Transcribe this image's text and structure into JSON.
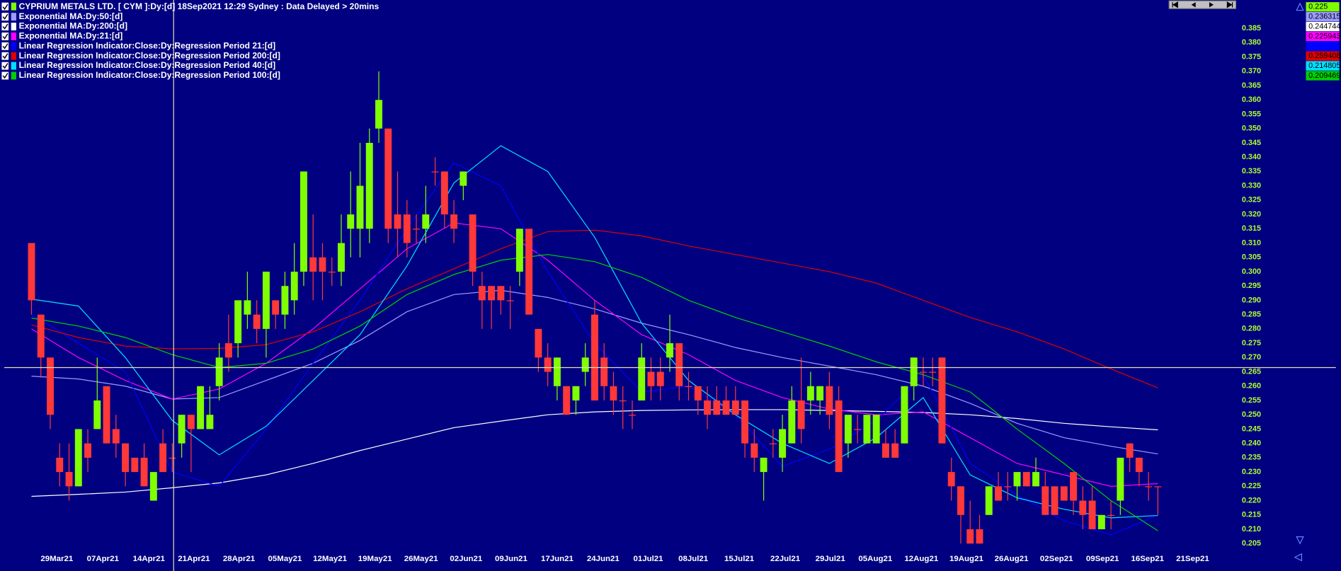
{
  "chart_data": {
    "type": "candlestick",
    "title": "CYPRIUM METALS LTD. [ CYM ]:Dy:[d]  18Sep2021 12:29 Sydney : Data Delayed > 20mins",
    "up_color": "#80ff00",
    "down_color": "#ff3838",
    "candles": [
      [
        0.31,
        0.31,
        0.285,
        0.29
      ],
      [
        0.285,
        0.285,
        0.263,
        0.27
      ],
      [
        0.27,
        0.27,
        0.245,
        0.25
      ],
      [
        0.235,
        0.24,
        0.225,
        0.23
      ],
      [
        0.23,
        0.24,
        0.22,
        0.225
      ],
      [
        0.225,
        0.245,
        0.225,
        0.245
      ],
      [
        0.24,
        0.245,
        0.23,
        0.235
      ],
      [
        0.245,
        0.27,
        0.245,
        0.255
      ],
      [
        0.26,
        0.26,
        0.24,
        0.24
      ],
      [
        0.245,
        0.25,
        0.235,
        0.24
      ],
      [
        0.24,
        0.24,
        0.225,
        0.23
      ],
      [
        0.235,
        0.235,
        0.23,
        0.23
      ],
      [
        0.235,
        0.24,
        0.225,
        0.225
      ],
      [
        0.22,
        0.23,
        0.22,
        0.23
      ],
      [
        0.24,
        0.245,
        0.23,
        0.23
      ],
      [
        0.235,
        0.24,
        0.23,
        0.235
      ],
      [
        0.24,
        0.25,
        0.235,
        0.25
      ],
      [
        0.25,
        0.25,
        0.23,
        0.245
      ],
      [
        0.245,
        0.26,
        0.245,
        0.26
      ],
      [
        0.245,
        0.26,
        0.245,
        0.25
      ],
      [
        0.26,
        0.275,
        0.255,
        0.27
      ],
      [
        0.275,
        0.285,
        0.265,
        0.27
      ],
      [
        0.275,
        0.29,
        0.27,
        0.29
      ],
      [
        0.285,
        0.3,
        0.28,
        0.29
      ],
      [
        0.285,
        0.29,
        0.275,
        0.28
      ],
      [
        0.28,
        0.3,
        0.27,
        0.3
      ],
      [
        0.29,
        0.29,
        0.28,
        0.285
      ],
      [
        0.285,
        0.3,
        0.28,
        0.295
      ],
      [
        0.29,
        0.31,
        0.285,
        0.3
      ],
      [
        0.3,
        0.335,
        0.295,
        0.335
      ],
      [
        0.305,
        0.32,
        0.29,
        0.3
      ],
      [
        0.305,
        0.31,
        0.29,
        0.3
      ],
      [
        0.3,
        0.305,
        0.295,
        0.3
      ],
      [
        0.3,
        0.32,
        0.295,
        0.31
      ],
      [
        0.315,
        0.335,
        0.305,
        0.32
      ],
      [
        0.315,
        0.345,
        0.305,
        0.33
      ],
      [
        0.315,
        0.35,
        0.31,
        0.345
      ],
      [
        0.35,
        0.37,
        0.345,
        0.36
      ],
      [
        0.35,
        0.35,
        0.31,
        0.315
      ],
      [
        0.32,
        0.335,
        0.305,
        0.315
      ],
      [
        0.32,
        0.325,
        0.305,
        0.31
      ],
      [
        0.315,
        0.32,
        0.31,
        0.315
      ],
      [
        0.315,
        0.33,
        0.31,
        0.32
      ],
      [
        0.335,
        0.34,
        0.33,
        0.335
      ],
      [
        0.335,
        0.335,
        0.315,
        0.32
      ],
      [
        0.32,
        0.325,
        0.31,
        0.315
      ],
      [
        0.33,
        0.335,
        0.325,
        0.335
      ],
      [
        0.32,
        0.32,
        0.295,
        0.3
      ],
      [
        0.295,
        0.3,
        0.28,
        0.29
      ],
      [
        0.295,
        0.295,
        0.28,
        0.29
      ],
      [
        0.295,
        0.295,
        0.285,
        0.29
      ],
      [
        0.29,
        0.295,
        0.28,
        0.29
      ],
      [
        0.3,
        0.315,
        0.295,
        0.315
      ],
      [
        0.315,
        0.315,
        0.285,
        0.285
      ],
      [
        0.28,
        0.28,
        0.265,
        0.27
      ],
      [
        0.27,
        0.275,
        0.26,
        0.265
      ],
      [
        0.26,
        0.27,
        0.255,
        0.27
      ],
      [
        0.26,
        0.26,
        0.25,
        0.25
      ],
      [
        0.255,
        0.26,
        0.25,
        0.26
      ],
      [
        0.265,
        0.275,
        0.26,
        0.27
      ],
      [
        0.285,
        0.29,
        0.255,
        0.255
      ],
      [
        0.27,
        0.275,
        0.255,
        0.26
      ],
      [
        0.26,
        0.265,
        0.25,
        0.255
      ],
      [
        0.255,
        0.26,
        0.245,
        0.255
      ],
      [
        0.25,
        0.255,
        0.245,
        0.25
      ],
      [
        0.255,
        0.275,
        0.255,
        0.27
      ],
      [
        0.265,
        0.27,
        0.255,
        0.26
      ],
      [
        0.265,
        0.27,
        0.255,
        0.26
      ],
      [
        0.27,
        0.285,
        0.265,
        0.275
      ],
      [
        0.275,
        0.275,
        0.255,
        0.26
      ],
      [
        0.26,
        0.265,
        0.255,
        0.26
      ],
      [
        0.26,
        0.26,
        0.25,
        0.255
      ],
      [
        0.255,
        0.26,
        0.245,
        0.25
      ],
      [
        0.255,
        0.26,
        0.25,
        0.25
      ],
      [
        0.255,
        0.26,
        0.25,
        0.25
      ],
      [
        0.255,
        0.26,
        0.25,
        0.25
      ],
      [
        0.255,
        0.255,
        0.235,
        0.24
      ],
      [
        0.24,
        0.245,
        0.23,
        0.235
      ],
      [
        0.23,
        0.235,
        0.22,
        0.235
      ],
      [
        0.24,
        0.245,
        0.235,
        0.24
      ],
      [
        0.235,
        0.25,
        0.23,
        0.245
      ],
      [
        0.24,
        0.26,
        0.24,
        0.255
      ],
      [
        0.255,
        0.27,
        0.24,
        0.245
      ],
      [
        0.255,
        0.265,
        0.25,
        0.26
      ],
      [
        0.255,
        0.26,
        0.25,
        0.26
      ],
      [
        0.26,
        0.265,
        0.245,
        0.25
      ],
      [
        0.255,
        0.26,
        0.23,
        0.23
      ],
      [
        0.24,
        0.25,
        0.235,
        0.25
      ],
      [
        0.245,
        0.25,
        0.24,
        0.245
      ],
      [
        0.24,
        0.25,
        0.24,
        0.25
      ],
      [
        0.24,
        0.25,
        0.24,
        0.25
      ],
      [
        0.24,
        0.245,
        0.235,
        0.235
      ],
      [
        0.24,
        0.245,
        0.235,
        0.235
      ],
      [
        0.24,
        0.26,
        0.24,
        0.26
      ],
      [
        0.26,
        0.27,
        0.255,
        0.27
      ],
      [
        0.265,
        0.27,
        0.26,
        0.265
      ],
      [
        0.265,
        0.27,
        0.26,
        0.265
      ],
      [
        0.27,
        0.27,
        0.24,
        0.24
      ],
      [
        0.23,
        0.235,
        0.22,
        0.225
      ],
      [
        0.225,
        0.225,
        0.205,
        0.215
      ],
      [
        0.21,
        0.22,
        0.205,
        0.205
      ],
      [
        0.21,
        0.215,
        0.205,
        0.205
      ],
      [
        0.215,
        0.225,
        0.215,
        0.225
      ],
      [
        0.225,
        0.23,
        0.22,
        0.22
      ],
      [
        0.225,
        0.23,
        0.22,
        0.225
      ],
      [
        0.225,
        0.23,
        0.22,
        0.23
      ],
      [
        0.23,
        0.23,
        0.225,
        0.225
      ],
      [
        0.225,
        0.235,
        0.225,
        0.23
      ],
      [
        0.225,
        0.23,
        0.215,
        0.215
      ],
      [
        0.225,
        0.225,
        0.215,
        0.215
      ],
      [
        0.225,
        0.225,
        0.22,
        0.22
      ],
      [
        0.23,
        0.23,
        0.215,
        0.22
      ],
      [
        0.22,
        0.225,
        0.21,
        0.215
      ],
      [
        0.22,
        0.225,
        0.21,
        0.21
      ],
      [
        0.21,
        0.215,
        0.21,
        0.215
      ],
      [
        0.215,
        0.22,
        0.21,
        0.215
      ],
      [
        0.22,
        0.235,
        0.215,
        0.235
      ],
      [
        0.24,
        0.24,
        0.23,
        0.235
      ],
      [
        0.235,
        0.235,
        0.225,
        0.23
      ],
      [
        0.225,
        0.23,
        0.22,
        0.225
      ],
      [
        0.225,
        0.225,
        0.215,
        0.225
      ]
    ],
    "x": [
      0,
      5,
      10,
      15,
      20,
      25,
      30,
      35,
      40,
      45,
      50,
      55,
      60,
      65,
      70,
      75,
      80,
      85,
      90,
      95,
      100,
      105,
      110,
      115,
      120
    ],
    "series": [
      {
        "name": "Exponential MA:Dy:50:[d]",
        "color": "#9c9cff",
        "values": [
          0.2635,
          0.2625,
          0.26,
          0.2555,
          0.256,
          0.262,
          0.268,
          0.276,
          0.286,
          0.292,
          0.2935,
          0.291,
          0.287,
          0.282,
          0.278,
          0.2735,
          0.27,
          0.267,
          0.264,
          0.26,
          0.254,
          0.247,
          0.242,
          0.239,
          0.236315
        ]
      },
      {
        "name": "Exponential MA:Dy:200:[d]",
        "color": "#ffffff",
        "values": [
          0.2215,
          0.2222,
          0.223,
          0.2245,
          0.2262,
          0.229,
          0.233,
          0.2375,
          0.2415,
          0.2455,
          0.2478,
          0.25,
          0.251,
          0.2515,
          0.2517,
          0.2518,
          0.2518,
          0.2515,
          0.2512,
          0.2508,
          0.25,
          0.2487,
          0.247,
          0.2458,
          0.244744
        ]
      },
      {
        "name": "Exponential MA:Dy:21:[d]",
        "color": "#ff00ff",
        "values": [
          0.28,
          0.27,
          0.262,
          0.2555,
          0.259,
          0.268,
          0.28,
          0.294,
          0.308,
          0.317,
          0.315,
          0.304,
          0.29,
          0.278,
          0.271,
          0.262,
          0.256,
          0.252,
          0.25,
          0.251,
          0.242,
          0.233,
          0.229,
          0.225,
          0.225943
        ]
      },
      {
        "name": "Linear Regression Indicator:Close:Dy:Regression Period 21:[d]",
        "color": "#0000ff",
        "values": [
          0.285,
          0.275,
          0.265,
          0.23,
          0.225,
          0.245,
          0.268,
          0.29,
          0.315,
          0.338,
          0.33,
          0.3,
          0.275,
          0.258,
          0.26,
          0.25,
          0.232,
          0.238,
          0.248,
          0.264,
          0.233,
          0.222,
          0.213,
          0.208,
          0.215
        ]
      },
      {
        "name": "Linear Regression Indicator:Close:Dy:Regression Period 200:[d]",
        "color": "#e00000",
        "values": [
          0.2814,
          0.277,
          0.274,
          0.273,
          0.2732,
          0.2745,
          0.279,
          0.286,
          0.294,
          0.301,
          0.308,
          0.314,
          0.3145,
          0.3125,
          0.309,
          0.306,
          0.303,
          0.3,
          0.296,
          0.29,
          0.284,
          0.279,
          0.273,
          0.266,
          0.259408
        ]
      },
      {
        "name": "Linear Regression Indicator:Close:Dy:Regression Period 40:[d]",
        "color": "#00e0ff",
        "values": [
          0.2904,
          0.288,
          0.27,
          0.248,
          0.236,
          0.246,
          0.262,
          0.278,
          0.302,
          0.331,
          0.344,
          0.335,
          0.312,
          0.282,
          0.262,
          0.25,
          0.24,
          0.233,
          0.242,
          0.256,
          0.229,
          0.221,
          0.217,
          0.214,
          0.214805
        ]
      },
      {
        "name": "Linear Regression Indicator:Close:Dy:Regression Period 100:[d]",
        "color": "#00d000",
        "values": [
          0.2838,
          0.281,
          0.277,
          0.271,
          0.2665,
          0.268,
          0.273,
          0.281,
          0.292,
          0.299,
          0.304,
          0.306,
          0.3035,
          0.298,
          0.29,
          0.284,
          0.279,
          0.274,
          0.2685,
          0.264,
          0.258,
          0.245,
          0.233,
          0.22,
          0.209469
        ]
      }
    ],
    "xlim": [
      -2.9,
      128.3
    ],
    "xticks": [
      {
        "value": 2.7,
        "label": "29Mar21"
      },
      {
        "value": 7.6,
        "label": "07Apr21"
      },
      {
        "value": 12.5,
        "label": "14Apr21"
      },
      {
        "value": 17.3,
        "label": "21Apr21"
      },
      {
        "value": 22.1,
        "label": "28Apr21"
      },
      {
        "value": 27,
        "label": "05May21"
      },
      {
        "value": 31.8,
        "label": "12May21"
      },
      {
        "value": 36.6,
        "label": "19May21"
      },
      {
        "value": 41.5,
        "label": "26May21"
      },
      {
        "value": 46.3,
        "label": "02Jun21"
      },
      {
        "value": 51.1,
        "label": "09Jun21"
      },
      {
        "value": 56,
        "label": "17Jun21"
      },
      {
        "value": 60.9,
        "label": "24Jun21"
      },
      {
        "value": 65.7,
        "label": "01Jul21"
      },
      {
        "value": 70.5,
        "label": "08Jul21"
      },
      {
        "value": 75.4,
        "label": "15Jul21"
      },
      {
        "value": 80.3,
        "label": "22Jul21"
      },
      {
        "value": 85.1,
        "label": "29Jul21"
      },
      {
        "value": 89.9,
        "label": "05Aug21"
      },
      {
        "value": 94.8,
        "label": "12Aug21"
      },
      {
        "value": 99.6,
        "label": "19Aug21"
      },
      {
        "value": 104.4,
        "label": "26Aug21"
      },
      {
        "value": 109.2,
        "label": "02Sep21"
      },
      {
        "value": 114.1,
        "label": "09Sep21"
      },
      {
        "value": 118.9,
        "label": "16Sep21"
      },
      {
        "value": 123.7,
        "label": "21Sep21"
      }
    ],
    "ylim": [
      0.2023,
      0.3949
    ],
    "yticks": [
      0.205,
      {
        "value": 0.21,
        "label": "0.210"
      },
      0.215,
      {
        "value": 0.22,
        "label": "0.220"
      },
      0.225,
      {
        "value": 0.23,
        "label": "0.230"
      },
      0.235,
      {
        "value": 0.24,
        "label": "0.240"
      },
      0.245,
      {
        "value": 0.25,
        "label": "0.250"
      },
      0.255,
      {
        "value": 0.26,
        "label": "0.260"
      },
      0.265,
      {
        "value": 0.27,
        "label": "0.270"
      },
      0.275,
      {
        "value": 0.28,
        "label": "0.280"
      },
      0.285,
      {
        "value": 0.29,
        "label": "0.290"
      },
      0.295,
      {
        "value": 0.3,
        "label": "0.300"
      },
      0.305,
      {
        "value": 0.31,
        "label": "0.310"
      },
      0.315,
      {
        "value": 0.32,
        "label": "0.320"
      },
      0.325,
      {
        "value": 0.33,
        "label": "0.330"
      },
      0.335,
      {
        "value": 0.34,
        "label": "0.340"
      },
      0.345,
      {
        "value": 0.35,
        "label": "0.350"
      },
      0.355,
      {
        "value": 0.36,
        "label": "0.360"
      },
      0.365,
      {
        "value": 0.37,
        "label": "0.370"
      },
      0.375,
      {
        "value": 0.38,
        "label": "0.380"
      },
      0.385
    ],
    "grid": false
  }
}
